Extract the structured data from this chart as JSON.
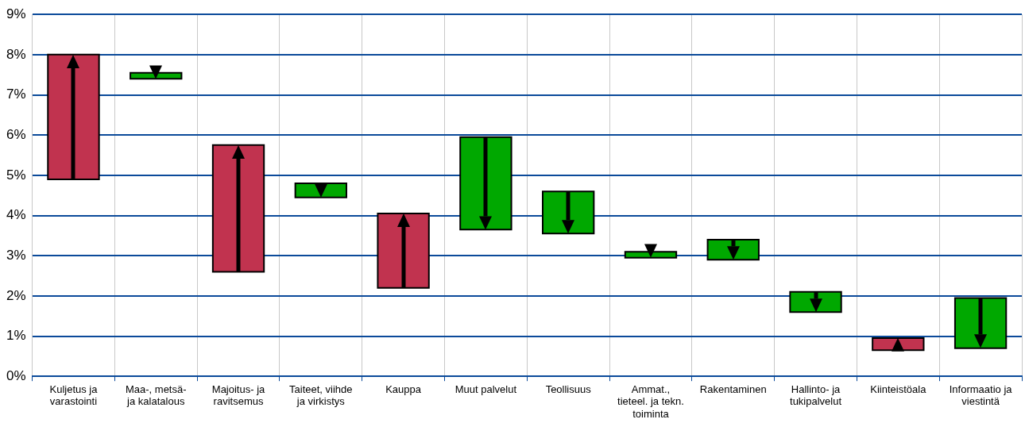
{
  "chart_data": {
    "type": "bar",
    "categories": [
      "Kuljetus ja varastointi",
      "Maa-, metsä- ja kalatalous",
      "Majoitus- ja ravitsemus",
      "Taiteet, viihde ja virkistys",
      "Kauppa",
      "Muut palvelut",
      "Teollisuus",
      "Ammat., tieteel. ja tekn. toiminta",
      "Rakentaminen",
      "Hallinto- ja tukipalvelut",
      "Kiinteistöala",
      "Informaatio ja viestintä"
    ],
    "base": [
      4.9,
      7.55,
      2.6,
      4.8,
      2.2,
      5.95,
      4.6,
      3.1,
      3.4,
      2.1,
      0.65,
      1.95
    ],
    "values": [
      3.1,
      -0.15,
      3.15,
      -0.35,
      1.85,
      -2.3,
      -1.05,
      -0.15,
      -0.5,
      -0.5,
      0.3,
      -1.25
    ],
    "colors": [
      "#c1334f",
      "#00a800",
      "#c1334f",
      "#00a800",
      "#c1334f",
      "#00a800",
      "#00a800",
      "#00a800",
      "#00a800",
      "#00a800",
      "#c1334f",
      "#00a800"
    ],
    "ylim": [
      0,
      9
    ],
    "yticks": [
      {
        "value": 0,
        "label": "0%"
      },
      {
        "value": 1,
        "label": "1%"
      },
      {
        "value": 2,
        "label": "2%"
      },
      {
        "value": 3,
        "label": "3%"
      },
      {
        "value": 4,
        "label": "4%"
      },
      {
        "value": 5,
        "label": "5%"
      },
      {
        "value": 6,
        "label": "6%"
      },
      {
        "value": 7,
        "label": "7%"
      },
      {
        "value": 8,
        "label": "8%"
      },
      {
        "value": 9,
        "label": "9%"
      }
    ],
    "grid": true
  }
}
